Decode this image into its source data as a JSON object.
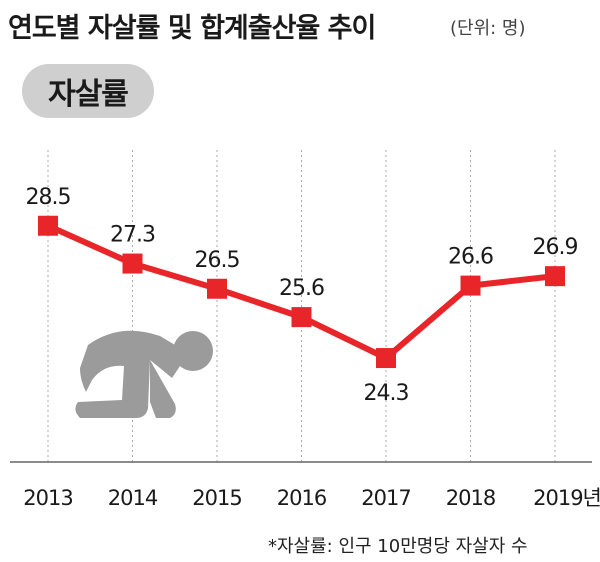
{
  "title": "연도별 자살률 및 합계출산율 추이",
  "unit": "(단위: 명)",
  "badge": "자살률",
  "footnote": "*자살률: 인구 10만명당 자살자 수",
  "x_suffix": "년",
  "chart_data": {
    "type": "line",
    "categories": [
      "2013",
      "2014",
      "2015",
      "2016",
      "2017",
      "2018",
      "2019"
    ],
    "series": [
      {
        "values": [
          28.5,
          27.3,
          26.5,
          25.6,
          24.3,
          26.6,
          26.9
        ]
      }
    ],
    "ylim": [
      21,
      31
    ],
    "grid": "vertical",
    "color": "#e8262a",
    "grid_color": "#aaaaaa"
  },
  "icon": "kneeling-person-icon"
}
